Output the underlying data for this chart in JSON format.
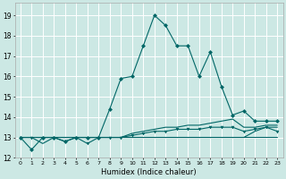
{
  "title": "",
  "xlabel": "Humidex (Indice chaleur)",
  "xlim": [
    -0.5,
    23.5
  ],
  "ylim": [
    12,
    19.6
  ],
  "yticks": [
    12,
    13,
    14,
    15,
    16,
    17,
    18,
    19
  ],
  "xticks": [
    0,
    1,
    2,
    3,
    4,
    5,
    6,
    7,
    8,
    9,
    10,
    11,
    12,
    13,
    14,
    15,
    16,
    17,
    18,
    19,
    20,
    21,
    22,
    23
  ],
  "bg_color": "#cce8e4",
  "grid_color": "#ffffff",
  "line_color": "#006666",
  "series": [
    {
      "y": [
        13.0,
        12.4,
        13.0,
        13.0,
        12.8,
        13.0,
        13.0,
        13.0,
        14.4,
        15.9,
        16.0,
        17.5,
        19.0,
        18.5,
        17.5,
        17.5,
        16.0,
        17.2,
        15.5,
        14.1,
        14.3,
        13.8,
        13.8,
        13.8
      ],
      "marker": "D",
      "ms": 2.0
    },
    {
      "y": [
        13.0,
        13.0,
        13.0,
        13.0,
        13.0,
        13.0,
        13.0,
        13.0,
        13.0,
        13.0,
        13.2,
        13.3,
        13.4,
        13.5,
        13.5,
        13.6,
        13.6,
        13.7,
        13.8,
        13.9,
        13.5,
        13.5,
        13.6,
        13.6
      ],
      "marker": null,
      "ms": 0
    },
    {
      "y": [
        13.0,
        13.0,
        13.0,
        13.0,
        12.8,
        13.0,
        12.7,
        13.0,
        13.0,
        13.0,
        13.1,
        13.2,
        13.3,
        13.3,
        13.4,
        13.4,
        13.4,
        13.5,
        13.5,
        13.5,
        13.3,
        13.4,
        13.5,
        13.3
      ],
      "marker": "v",
      "ms": 2.0
    },
    {
      "y": [
        13.0,
        13.0,
        13.0,
        13.0,
        13.0,
        13.0,
        13.0,
        13.0,
        13.0,
        13.0,
        13.0,
        13.0,
        13.0,
        13.0,
        13.0,
        13.0,
        13.0,
        13.0,
        13.0,
        13.0,
        13.0,
        13.3,
        13.5,
        13.5
      ],
      "marker": null,
      "ms": 0
    },
    {
      "y": [
        13.0,
        13.0,
        12.7,
        13.0,
        13.0,
        13.0,
        13.0,
        13.0,
        13.0,
        13.0,
        13.0,
        13.0,
        13.0,
        13.0,
        13.0,
        13.0,
        13.0,
        13.0,
        13.0,
        13.0,
        13.0,
        13.0,
        13.0,
        13.0
      ],
      "marker": null,
      "ms": 0
    }
  ]
}
